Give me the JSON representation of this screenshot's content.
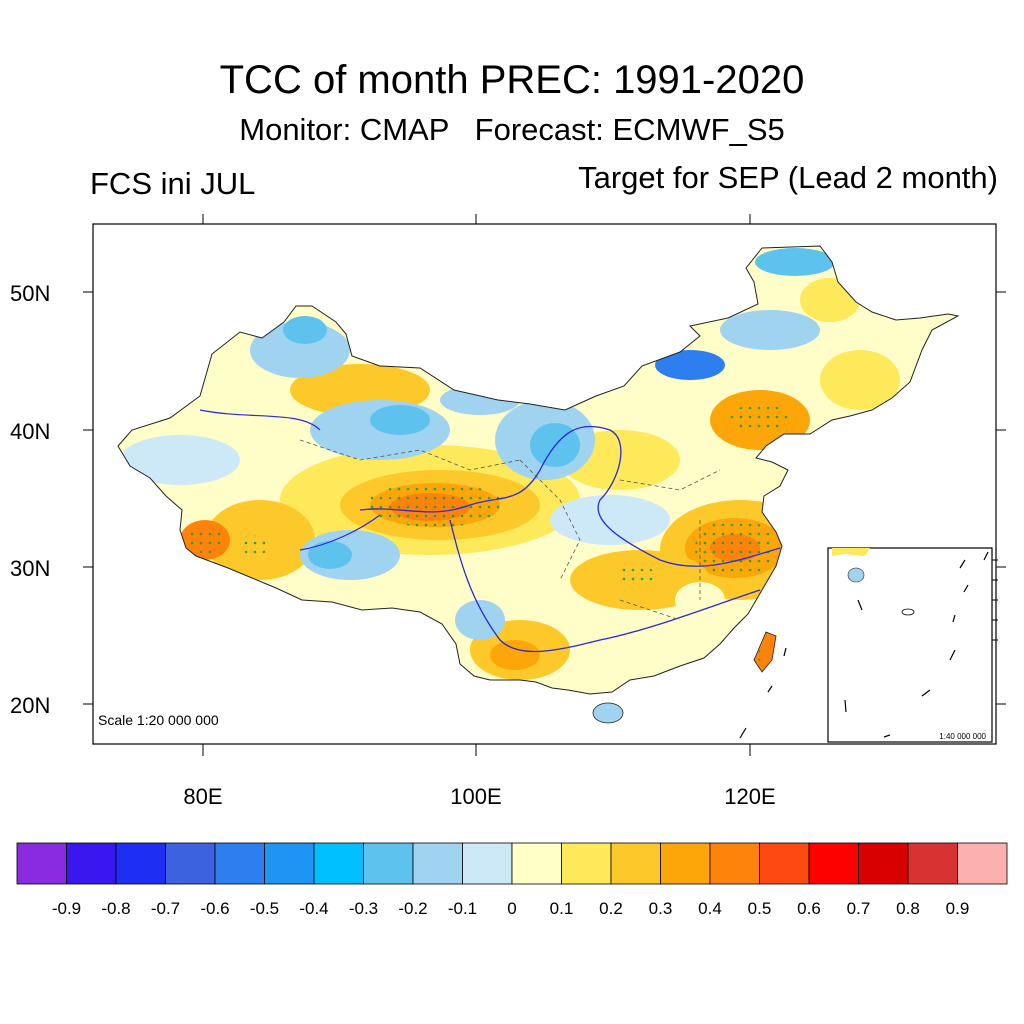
{
  "title": "TCC of month PREC: 1991-2020",
  "subtitle": "Monitor: CMAP   Forecast: ECMWF_S5",
  "left_label": "FCS ini JUL",
  "right_label": "Target for SEP (Lead 2 month)",
  "map": {
    "lat_labels": [
      "50N",
      "40N",
      "30N",
      "20N"
    ],
    "lon_labels": [
      "80E",
      "100E",
      "120E"
    ],
    "scale_text": "Scale 1:20 000 000",
    "inset_scale_text": "1:40 000 000",
    "colors": {
      "land_default": "#fffdc8",
      "river": "#2a2ad8",
      "boundary": "#555555",
      "stipple": "#2e9e2e"
    }
  },
  "colorbar": {
    "colors": [
      "#8a2be2",
      "#3a16f0",
      "#1f2ef3",
      "#3d62df",
      "#2d7ff0",
      "#1e95f5",
      "#00bfff",
      "#5ec2ef",
      "#a0d3ef",
      "#cde9f7",
      "#ffffc8",
      "#fde95a",
      "#fdc82a",
      "#fda60a",
      "#fd830a",
      "#fd4a10",
      "#fd0000",
      "#d80000",
      "#d83232",
      "#fdb0b0"
    ],
    "labels": [
      "-0.9",
      "-0.8",
      "-0.7",
      "-0.6",
      "-0.5",
      "-0.4",
      "-0.3",
      "-0.2",
      "-0.1",
      "0",
      "0.1",
      "0.2",
      "0.3",
      "0.4",
      "0.5",
      "0.6",
      "0.7",
      "0.8",
      "0.9"
    ]
  }
}
